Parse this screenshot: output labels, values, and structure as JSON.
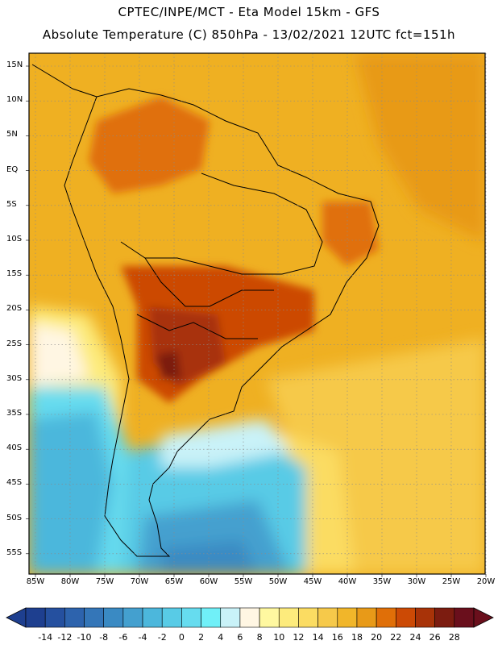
{
  "header": {
    "title_line1": "CPTEC/INPE/MCT -  Eta Model 15km - GFS",
    "title_line2": "Absolute Temperature (C) 850hPa - 13/02/2021 12UTC fct=151h"
  },
  "map": {
    "region": "South America",
    "variable": "Absolute Temperature (C) 850hPa",
    "lat_labels": [
      "15N",
      "10N",
      "5N",
      "EQ",
      "5S",
      "10S",
      "15S",
      "20S",
      "25S",
      "30S",
      "35S",
      "40S",
      "45S",
      "50S",
      "55S"
    ],
    "lon_labels": [
      "85W",
      "80W",
      "75W",
      "70W",
      "65W",
      "60W",
      "55W",
      "50W",
      "45W",
      "40W",
      "35W",
      "30W",
      "25W",
      "20W"
    ]
  },
  "colorbar": {
    "labels": [
      "-14",
      "-12",
      "-10",
      "-8",
      "-6",
      "-4",
      "-2",
      "0",
      "2",
      "4",
      "6",
      "8",
      "10",
      "12",
      "14",
      "16",
      "18",
      "20",
      "22",
      "24",
      "26",
      "28"
    ],
    "colors": [
      "#1e3f8f",
      "#25509f",
      "#2d63ad",
      "#3476b8",
      "#3a8ac3",
      "#44a0cf",
      "#4cb7dc",
      "#58cbe6",
      "#66dcef",
      "#70f0f8",
      "#c9f2f8",
      "#fff6e3",
      "#fff8a0",
      "#fdeb7c",
      "#fbdc62",
      "#f6c94a",
      "#f1b62a",
      "#e89a18",
      "#e06f08",
      "#cc4a05",
      "#a83308",
      "#7c1c10",
      "#6a0f1c"
    ],
    "under_color": "#1e3f8f",
    "over_color": "#6a0f1c"
  }
}
